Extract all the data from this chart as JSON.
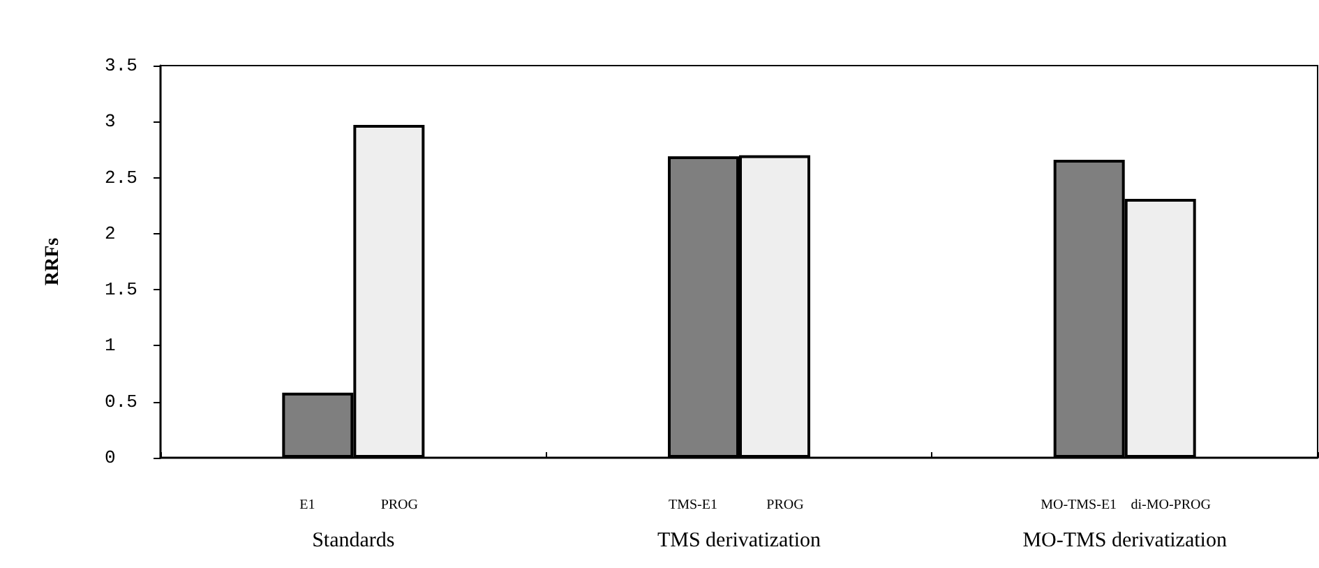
{
  "chart_data": {
    "type": "bar",
    "ylabel": "RRFs",
    "categories": [
      "Standards",
      "TMS derivatization",
      "MO-TMS derivatization"
    ],
    "series": [
      {
        "color": "#7f7f7f",
        "values": [
          0.58,
          2.69,
          2.66
        ]
      },
      {
        "color": "#eeeeee",
        "values": [
          2.97,
          2.7,
          2.31
        ]
      }
    ],
    "annotations": [
      "E1",
      "PROG",
      "TMS-E1",
      "PROG",
      "MO-TMS-E1",
      "di-MO-PROG"
    ],
    "ylim": [
      0,
      3.5
    ],
    "yticks": [
      0,
      0.5,
      1,
      1.5,
      2,
      2.5,
      3,
      3.5
    ],
    "grid": false
  }
}
